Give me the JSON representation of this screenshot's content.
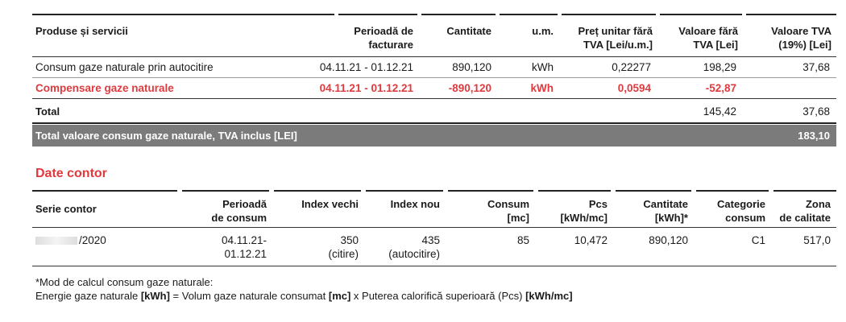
{
  "invoice_table": {
    "headers": {
      "col1": "Produse și servicii",
      "col2_l1": "Perioadă de",
      "col2_l2": "facturare",
      "col3": "Cantitate",
      "col4": "u.m.",
      "col5_l1": "Preț unitar fără",
      "col5_l2": "TVA [Lei/u.m.]",
      "col6_l1": "Valoare fără",
      "col6_l2": "TVA [Lei]",
      "col7_l1": "Valoare TVA",
      "col7_l2": "(19%) [Lei]"
    },
    "rows": [
      {
        "product": "Consum gaze naturale prin autocitire",
        "period": "04.11.21 - 01.12.21",
        "qty": "890,120",
        "unit": "kWh",
        "price": "0,22277",
        "value": "198,29",
        "vat": "37,68"
      },
      {
        "product": "Compensare gaze naturale",
        "period": "04.11.21 - 01.12.21",
        "qty": "-890,120",
        "unit": "kWh",
        "price": "0,0594",
        "value": "-52,87",
        "vat": ""
      }
    ],
    "total": {
      "label": "Total",
      "value": "145,42",
      "vat": "37,68"
    },
    "grand_total": {
      "label": "Total valoare consum gaze naturale, TVA inclus [LEI]",
      "value": "183,10"
    }
  },
  "meter_section": {
    "title": "Date contor",
    "headers": {
      "serial": "Serie contor",
      "period_l1": "Perioadă",
      "period_l2": "de consum",
      "old_index": "Index vechi",
      "new_index": "Index nou",
      "consum_l1": "Consum",
      "consum_l2": "[mc]",
      "pcs_l1": "Pcs",
      "pcs_l2": "[kWh/mc]",
      "qty_l1": "Cantitate",
      "qty_l2": "[kWh]*",
      "cat_l1": "Categorie",
      "cat_l2": "consum",
      "zone_l1": "Zona",
      "zone_l2": "de calitate"
    },
    "row": {
      "serial": "/2020",
      "period_l1": "04.11.21-",
      "period_l2": "01.12.21",
      "old_index": "350",
      "old_index_note": "(citire)",
      "new_index": "435",
      "new_index_note": "(autocitire)",
      "consum": "85",
      "pcs": "10,472",
      "qty": "890,120",
      "category": "C1",
      "zone": "517,0"
    }
  },
  "footnote": {
    "line1": "*Mod de calcul consum gaze naturale:",
    "l2_a": "Energie gaze naturale ",
    "l2_b": "[kWh]",
    "l2_c": " = Volum gaze naturale consumat ",
    "l2_d": "[mc]",
    "l2_e": " x Puterea calorifică superioară (Pcs) ",
    "l2_f": "[kWh/mc]"
  }
}
